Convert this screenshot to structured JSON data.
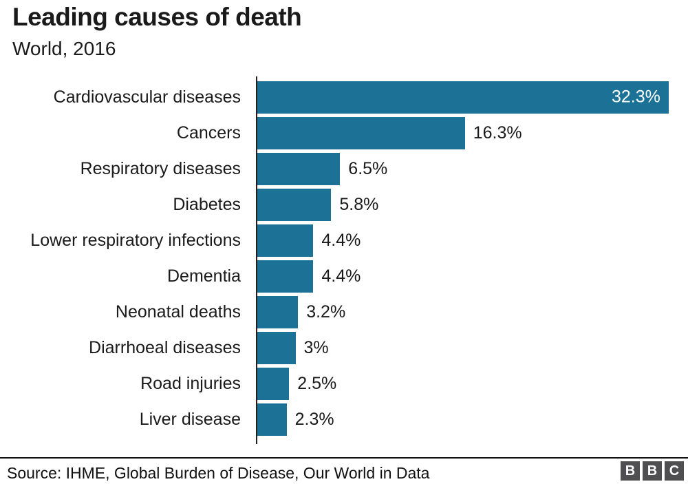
{
  "header": {
    "title": "Leading causes of death",
    "subtitle": "World, 2016"
  },
  "chart_data": {
    "type": "bar",
    "orientation": "horizontal",
    "title": "Leading causes of death",
    "subtitle": "World, 2016",
    "categories": [
      "Cardiovascular diseases",
      "Cancers",
      "Respiratory diseases",
      "Diabetes",
      "Lower respiratory infections",
      "Dementia",
      "Neonatal deaths",
      "Diarrhoeal diseases",
      "Road injuries",
      "Liver disease"
    ],
    "values": [
      32.3,
      16.3,
      6.5,
      5.8,
      4.4,
      4.4,
      3.2,
      3,
      2.5,
      2.3
    ],
    "value_labels": [
      "32.3%",
      "16.3%",
      "6.5%",
      "5.8%",
      "4.4%",
      "4.4%",
      "3.2%",
      "3%",
      "2.5%",
      "2.3%"
    ],
    "unit": "%",
    "xlim": [
      0,
      32.3
    ],
    "bar_color": "#1b7196",
    "grid": false,
    "legend": false
  },
  "footer": {
    "source": "Source: IHME, Global Burden of Disease, Our World in Data",
    "logo_letters": [
      "B",
      "B",
      "C"
    ],
    "logo_color": "#4f4f51"
  }
}
